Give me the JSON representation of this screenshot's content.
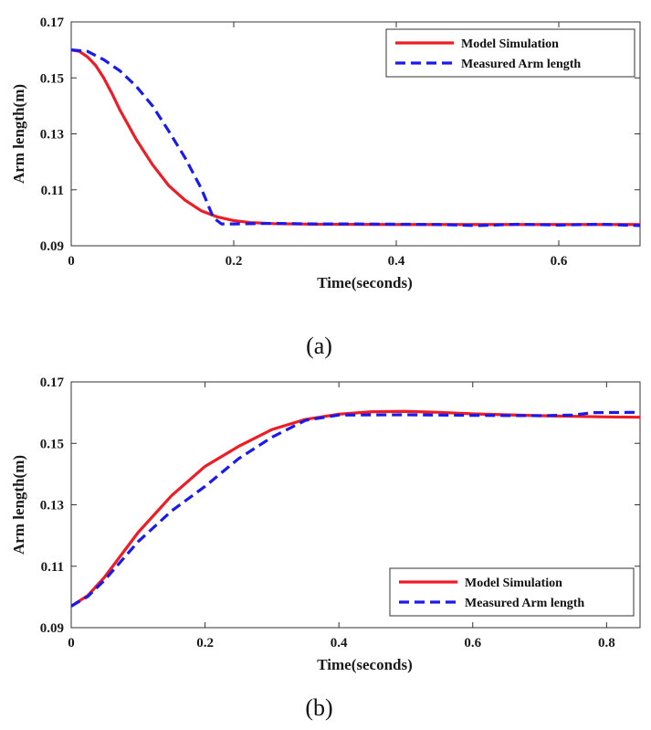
{
  "chart_data": [
    {
      "type": "line",
      "panel_label": "(a)",
      "xlabel": "Time(seconds)",
      "ylabel": "Arm length(m)",
      "xlim": [
        0,
        0.7
      ],
      "ylim": [
        0.09,
        0.17
      ],
      "xticks": [
        0,
        0.2,
        0.4,
        0.6
      ],
      "xtick_labels": [
        "0",
        "0.2",
        "0.4",
        "0.6"
      ],
      "yticks": [
        0.09,
        0.11,
        0.13,
        0.15,
        0.17
      ],
      "ytick_labels": [
        "0.09",
        "0.11",
        "0.13",
        "0.15",
        "0.17"
      ],
      "legend_position": "top-right",
      "series": [
        {
          "name": "Model Simulation",
          "color": "#ee1c25",
          "style": "solid",
          "points": [
            [
              0,
              0.16
            ],
            [
              0.01,
              0.1595
            ],
            [
              0.02,
              0.1575
            ],
            [
              0.03,
              0.1545
            ],
            [
              0.04,
              0.15
            ],
            [
              0.05,
              0.1445
            ],
            [
              0.06,
              0.1385
            ],
            [
              0.08,
              0.128
            ],
            [
              0.1,
              0.119
            ],
            [
              0.12,
              0.1115
            ],
            [
              0.14,
              0.1063
            ],
            [
              0.16,
              0.1025
            ],
            [
              0.18,
              0.1003
            ],
            [
              0.2,
              0.099
            ],
            [
              0.22,
              0.0983
            ],
            [
              0.25,
              0.0979
            ],
            [
              0.3,
              0.0977
            ],
            [
              0.4,
              0.0976
            ],
            [
              0.5,
              0.0976
            ],
            [
              0.6,
              0.0976
            ],
            [
              0.7,
              0.0976
            ]
          ]
        },
        {
          "name": "Measured Arm length",
          "color": "#1a1aee",
          "style": "dashed",
          "points": [
            [
              0,
              0.16
            ],
            [
              0.02,
              0.1595
            ],
            [
              0.04,
              0.1565
            ],
            [
              0.06,
              0.1525
            ],
            [
              0.08,
              0.147
            ],
            [
              0.1,
              0.14
            ],
            [
              0.12,
              0.131
            ],
            [
              0.14,
              0.1215
            ],
            [
              0.16,
              0.1105
            ],
            [
              0.175,
              0.1
            ],
            [
              0.185,
              0.0978
            ],
            [
              0.2,
              0.0978
            ],
            [
              0.25,
              0.098
            ],
            [
              0.3,
              0.0978
            ],
            [
              0.35,
              0.0978
            ],
            [
              0.4,
              0.0977
            ],
            [
              0.45,
              0.0976
            ],
            [
              0.5,
              0.0972
            ],
            [
              0.55,
              0.0977
            ],
            [
              0.6,
              0.0974
            ],
            [
              0.65,
              0.0977
            ],
            [
              0.7,
              0.0972
            ]
          ]
        }
      ]
    },
    {
      "type": "line",
      "panel_label": "(b)",
      "xlabel": "Time(seconds)",
      "ylabel": "Arm length(m)",
      "xlim": [
        0,
        0.85
      ],
      "ylim": [
        0.09,
        0.17
      ],
      "xticks": [
        0,
        0.2,
        0.4,
        0.6,
        0.8
      ],
      "xtick_labels": [
        "0",
        "0.2",
        "0.4",
        "0.6",
        "0.8"
      ],
      "yticks": [
        0.09,
        0.11,
        0.13,
        0.15,
        0.17
      ],
      "ytick_labels": [
        "0.09",
        "0.11",
        "0.13",
        "0.15",
        "0.17"
      ],
      "legend_position": "bottom-right",
      "series": [
        {
          "name": "Model Simulation",
          "color": "#ee1c25",
          "style": "solid",
          "points": [
            [
              0,
              0.097
            ],
            [
              0.025,
              0.1005
            ],
            [
              0.05,
              0.1065
            ],
            [
              0.1,
              0.121
            ],
            [
              0.15,
              0.133
            ],
            [
              0.2,
              0.1425
            ],
            [
              0.25,
              0.149
            ],
            [
              0.3,
              0.1545
            ],
            [
              0.35,
              0.1578
            ],
            [
              0.4,
              0.1595
            ],
            [
              0.45,
              0.1603
            ],
            [
              0.5,
              0.1604
            ],
            [
              0.55,
              0.1601
            ],
            [
              0.6,
              0.1596
            ],
            [
              0.7,
              0.159
            ],
            [
              0.8,
              0.1586
            ],
            [
              0.85,
              0.1585
            ]
          ]
        },
        {
          "name": "Measured Arm length",
          "color": "#1a1aee",
          "style": "dashed",
          "points": [
            [
              0,
              0.097
            ],
            [
              0.025,
              0.1002
            ],
            [
              0.05,
              0.1055
            ],
            [
              0.1,
              0.118
            ],
            [
              0.15,
              0.128
            ],
            [
              0.2,
              0.136
            ],
            [
              0.25,
              0.145
            ],
            [
              0.3,
              0.152
            ],
            [
              0.35,
              0.1575
            ],
            [
              0.4,
              0.1592
            ],
            [
              0.5,
              0.1593
            ],
            [
              0.6,
              0.1591
            ],
            [
              0.7,
              0.159
            ],
            [
              0.75,
              0.1592
            ],
            [
              0.78,
              0.16
            ],
            [
              0.85,
              0.1601
            ]
          ]
        }
      ]
    }
  ]
}
